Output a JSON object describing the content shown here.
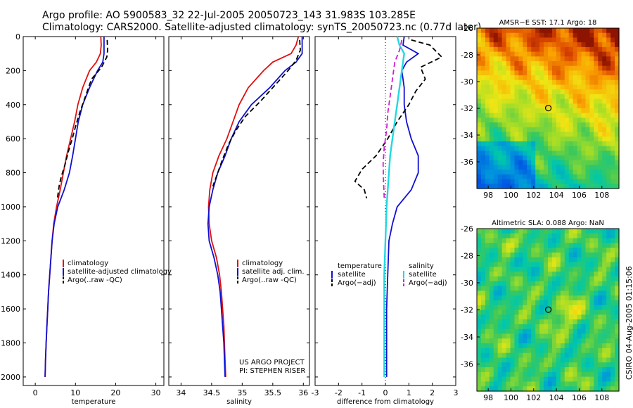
{
  "title_line1": "Argo profile: AO 5900583_32 22-Jul-2005 20050723_143 31.983S 103.285E",
  "title_line2": "Climatology: CARS2000. Satellite-adjusted climatology: synTS_20050723.nc (0.77d later)",
  "credit": "CSIRO 04-Aug-2005 01:15:06",
  "colors": {
    "climatology": "#e01010",
    "satellite": "#1010d0",
    "argo": "#000000",
    "salinity": "#22d8e0",
    "salinity_argo": "#d020d0"
  },
  "chart_data": [
    {
      "type": "line",
      "xlabel": "temperature",
      "ylabel": "",
      "xlim": [
        -3,
        32
      ],
      "ylim": [
        2050,
        0
      ],
      "xticks": [
        0,
        10,
        20,
        30
      ],
      "yticks": [
        0,
        200,
        400,
        600,
        800,
        1000,
        1200,
        1400,
        1600,
        1800,
        2000
      ],
      "legend": [
        "climatology",
        "satellite-adjusted climatology",
        "Argo(..raw -QC)"
      ],
      "series": [
        {
          "name": "climatology",
          "style": "solid",
          "color": "#e01010",
          "points": [
            [
              16.3,
              0
            ],
            [
              16.4,
              50
            ],
            [
              16.2,
              100
            ],
            [
              15.2,
              150
            ],
            [
              13.5,
              200
            ],
            [
              11.8,
              300
            ],
            [
              10.6,
              400
            ],
            [
              9.8,
              500
            ],
            [
              8.8,
              600
            ],
            [
              7.8,
              700
            ],
            [
              7,
              800
            ],
            [
              6.2,
              900
            ],
            [
              5.3,
              1000
            ],
            [
              4.6,
              1100
            ],
            [
              4.2,
              1200
            ],
            [
              3.9,
              1300
            ],
            [
              3.6,
              1400
            ],
            [
              3.3,
              1500
            ],
            [
              3.1,
              1600
            ],
            [
              2.9,
              1700
            ],
            [
              2.7,
              1800
            ],
            [
              2.55,
              1900
            ],
            [
              2.45,
              2000
            ]
          ]
        },
        {
          "name": "satellite-adjusted climatology",
          "style": "solid",
          "color": "#1010d0",
          "points": [
            [
              17.1,
              0
            ],
            [
              17.1,
              100
            ],
            [
              16.8,
              150
            ],
            [
              15.5,
              200
            ],
            [
              13.5,
              300
            ],
            [
              11.8,
              400
            ],
            [
              10.7,
              500
            ],
            [
              10,
              600
            ],
            [
              9.3,
              700
            ],
            [
              8.5,
              800
            ],
            [
              7.2,
              900
            ],
            [
              5.6,
              1000
            ],
            [
              4.7,
              1100
            ],
            [
              4.2,
              1200
            ],
            [
              3.9,
              1300
            ],
            [
              3.6,
              1400
            ],
            [
              3.3,
              1500
            ],
            [
              3.1,
              1600
            ],
            [
              2.9,
              1700
            ],
            [
              2.7,
              1800
            ],
            [
              2.55,
              1900
            ],
            [
              2.45,
              2000
            ]
          ]
        },
        {
          "name": "Argo(..raw -QC)",
          "style": "dashed",
          "color": "#000000",
          "points": [
            [
              17.9,
              20
            ],
            [
              18,
              80
            ],
            [
              17.8,
              120
            ],
            [
              16.5,
              180
            ],
            [
              14,
              250
            ],
            [
              12.5,
              350
            ],
            [
              11,
              450
            ],
            [
              10,
              530
            ],
            [
              9.2,
              600
            ],
            [
              8.3,
              670
            ],
            [
              7.3,
              760
            ],
            [
              6.5,
              820
            ],
            [
              6,
              870
            ],
            [
              5.5,
              950
            ]
          ]
        }
      ]
    },
    {
      "type": "line",
      "xlabel": "salinity",
      "ylabel": "",
      "xlim": [
        33.8,
        36.1
      ],
      "ylim": [
        2050,
        0
      ],
      "xticks": [
        34,
        34.5,
        35,
        35.5,
        36
      ],
      "legend": [
        "climatology",
        "satellite adj. clim.",
        "Argo(..raw -QC)"
      ],
      "annotations": [
        "US ARGO PROJECT",
        "PI: STEPHEN RISER"
      ],
      "series": [
        {
          "name": "climatology",
          "style": "solid",
          "color": "#e01010",
          "points": [
            [
              35.92,
              0
            ],
            [
              35.88,
              50
            ],
            [
              35.8,
              100
            ],
            [
              35.5,
              150
            ],
            [
              35.35,
              200
            ],
            [
              35.1,
              300
            ],
            [
              34.95,
              400
            ],
            [
              34.85,
              500
            ],
            [
              34.75,
              600
            ],
            [
              34.62,
              700
            ],
            [
              34.52,
              800
            ],
            [
              34.47,
              900
            ],
            [
              34.45,
              1000
            ],
            [
              34.46,
              1100
            ],
            [
              34.5,
              1200
            ],
            [
              34.58,
              1300
            ],
            [
              34.63,
              1400
            ],
            [
              34.66,
              1500
            ],
            [
              34.68,
              1600
            ],
            [
              34.7,
              1700
            ],
            [
              34.71,
              1800
            ],
            [
              34.72,
              1900
            ],
            [
              34.73,
              2000
            ]
          ]
        },
        {
          "name": "satellite adj. clim.",
          "style": "solid",
          "color": "#1010d0",
          "points": [
            [
              35.98,
              0
            ],
            [
              35.98,
              100
            ],
            [
              35.88,
              150
            ],
            [
              35.7,
              200
            ],
            [
              35.45,
              300
            ],
            [
              35.15,
              400
            ],
            [
              34.95,
              500
            ],
            [
              34.82,
              600
            ],
            [
              34.72,
              700
            ],
            [
              34.6,
              800
            ],
            [
              34.52,
              900
            ],
            [
              34.46,
              1000
            ],
            [
              34.44,
              1100
            ],
            [
              34.46,
              1200
            ],
            [
              34.54,
              1300
            ],
            [
              34.6,
              1400
            ],
            [
              34.64,
              1500
            ],
            [
              34.66,
              1600
            ],
            [
              34.68,
              1700
            ],
            [
              34.7,
              1800
            ],
            [
              34.71,
              1900
            ],
            [
              34.72,
              2000
            ]
          ]
        },
        {
          "name": "Argo(..raw -QC)",
          "style": "dashed",
          "color": "#000000",
          "points": [
            [
              35.94,
              20
            ],
            [
              35.95,
              80
            ],
            [
              35.88,
              140
            ],
            [
              35.75,
              200
            ],
            [
              35.55,
              280
            ],
            [
              35.3,
              380
            ],
            [
              35.05,
              470
            ],
            [
              34.9,
              550
            ],
            [
              34.78,
              630
            ],
            [
              34.68,
              720
            ],
            [
              34.6,
              800
            ],
            [
              34.52,
              880
            ]
          ]
        }
      ]
    },
    {
      "type": "line",
      "xlabel": "difference from climatology",
      "ylabel": "",
      "xlim": [
        -3,
        3
      ],
      "ylim": [
        2050,
        0
      ],
      "xticks": [
        -3,
        -2,
        -1,
        0,
        1,
        2,
        3
      ],
      "legend_left": [
        "temperature",
        "satellite",
        "Argo(−adj)"
      ],
      "legend_right": [
        "salinity",
        "satellite",
        "Argo(−adj)"
      ],
      "series": [
        {
          "name": "satellite",
          "style": "solid",
          "color": "#1010d0",
          "points": [
            [
              0.8,
              0
            ],
            [
              0.75,
              50
            ],
            [
              1.4,
              100
            ],
            [
              0.9,
              150
            ],
            [
              0.7,
              200
            ],
            [
              0.8,
              300
            ],
            [
              0.8,
              400
            ],
            [
              0.9,
              500
            ],
            [
              1.1,
              600
            ],
            [
              1.4,
              700
            ],
            [
              1.4,
              800
            ],
            [
              1.1,
              900
            ],
            [
              0.5,
              1000
            ],
            [
              0.3,
              1100
            ],
            [
              0.15,
              1200
            ],
            [
              0.1,
              1400
            ],
            [
              0.05,
              1600
            ],
            [
              0.05,
              2000
            ]
          ]
        },
        {
          "name": "Argo(−adj)",
          "style": "dashed",
          "color": "#000000",
          "points": [
            [
              1.1,
              20
            ],
            [
              1.9,
              50
            ],
            [
              2.4,
              120
            ],
            [
              1.5,
              180
            ],
            [
              1.7,
              250
            ],
            [
              1.3,
              320
            ],
            [
              1,
              400
            ],
            [
              0.5,
              500
            ],
            [
              0.1,
              600
            ],
            [
              -0.4,
              700
            ],
            [
              -1,
              780
            ],
            [
              -1.3,
              850
            ],
            [
              -0.9,
              900
            ],
            [
              -0.8,
              950
            ]
          ]
        },
        {
          "name": "salinity satellite",
          "style": "solid",
          "color": "#22d8e0",
          "points": [
            [
              0.5,
              0
            ],
            [
              0.6,
              50
            ],
            [
              0.8,
              100
            ],
            [
              0.7,
              200
            ],
            [
              0.6,
              300
            ],
            [
              0.5,
              400
            ],
            [
              0.4,
              500
            ],
            [
              0.3,
              600
            ],
            [
              0.2,
              700
            ],
            [
              0.15,
              800
            ],
            [
              0.1,
              900
            ],
            [
              0.05,
              1000
            ],
            [
              0,
              1200
            ],
            [
              -0.05,
              1400
            ],
            [
              -0.05,
              1600
            ],
            [
              -0.05,
              1800
            ],
            [
              -0.05,
              2000
            ]
          ]
        },
        {
          "name": "salinity Argo(−adj)",
          "style": "dashed",
          "color": "#d020d0",
          "points": [
            [
              0.7,
              20
            ],
            [
              0.6,
              80
            ],
            [
              0.4,
              150
            ],
            [
              0.3,
              250
            ],
            [
              0.2,
              350
            ],
            [
              0.1,
              450
            ],
            [
              0.05,
              550
            ],
            [
              -0.05,
              650
            ],
            [
              -0.1,
              750
            ],
            [
              -0.08,
              850
            ],
            [
              -0.05,
              950
            ]
          ]
        }
      ]
    },
    {
      "type": "heatmap",
      "title": "AMSR−E SST: 17.1 Argo: 18",
      "xlim": [
        97,
        109.5
      ],
      "ylim": [
        -38,
        -26
      ],
      "xticks": [
        98,
        100,
        102,
        104,
        106,
        108
      ],
      "yticks": [
        -26,
        -28,
        -30,
        -32,
        -34,
        -36
      ],
      "marker": [
        103.285,
        -31.983
      ],
      "field": "sst"
    },
    {
      "type": "heatmap",
      "title": "Altimetric SLA: 0.088 Argo: NaN",
      "xlim": [
        97,
        109.5
      ],
      "ylim": [
        -38,
        -26
      ],
      "xticks": [
        98,
        100,
        102,
        104,
        106,
        108
      ],
      "yticks": [
        -26,
        -28,
        -30,
        -32,
        -34,
        -36
      ],
      "marker": [
        103.285,
        -31.983
      ],
      "field": "sla"
    }
  ]
}
